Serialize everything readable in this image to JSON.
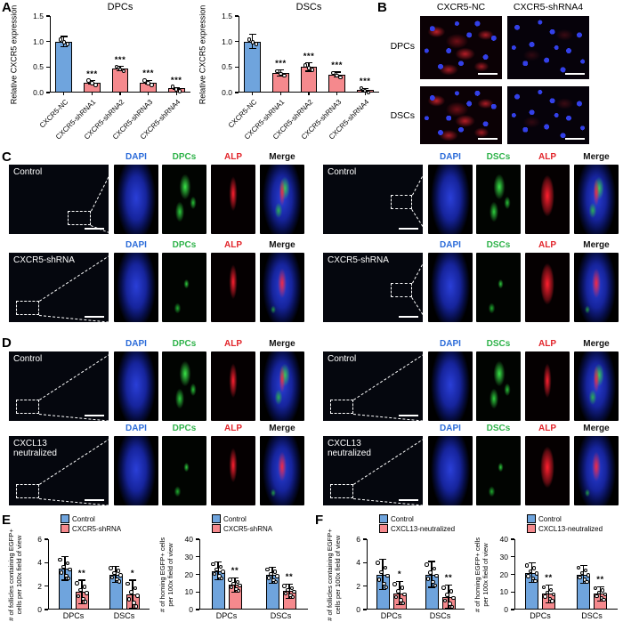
{
  "colors": {
    "control_bar": "#6FA4DD",
    "treated_bar": "#F5898D",
    "dapi_blue": "#2B6BD9",
    "egfp_green": "#2FB34A",
    "alp_red": "#E2252B"
  },
  "panels": {
    "A": {
      "label": "A"
    },
    "B": {
      "label": "B",
      "columns": [
        "CXCR5-NC",
        "CXCR5-shRNA4"
      ],
      "rows": [
        "DPCs",
        "DSCs"
      ]
    },
    "C": {
      "label": "C",
      "left": {
        "headers": [
          "DAPI",
          "DPCs",
          "ALP",
          "Merge"
        ],
        "rows": [
          {
            "label": "Control"
          },
          {
            "label": "CXCR5-shRNA"
          }
        ]
      },
      "right": {
        "headers": [
          "DAPI",
          "DSCs",
          "ALP",
          "Merge"
        ],
        "rows": [
          {
            "label": "Control"
          },
          {
            "label": "CXCR5-shRNA"
          }
        ]
      }
    },
    "D": {
      "label": "D",
      "left": {
        "headers": [
          "DAPI",
          "DPCs",
          "ALP",
          "Merge"
        ],
        "rows": [
          {
            "label": "Control"
          },
          {
            "label": "CXCL13 neutralized"
          }
        ]
      },
      "right": {
        "headers": [
          "DAPI",
          "DSCs",
          "ALP",
          "Merge"
        ],
        "rows": [
          {
            "label": "Control"
          },
          {
            "label": "CXCL13 neutralized"
          }
        ]
      }
    },
    "E": {
      "label": "E"
    },
    "F": {
      "label": "F"
    }
  },
  "chart_data": [
    {
      "id": "a_dpcs",
      "type": "bar",
      "title": "DPCs",
      "ylabel": "Relative CXCR5 expression",
      "categories": [
        "CXCR5-NC",
        "CXCR5-shRNA1",
        "CXCR5-shRNA2",
        "CXCR5-shRNA3",
        "CXCR5-shRNA4"
      ],
      "values": [
        1.0,
        0.2,
        0.47,
        0.2,
        0.08
      ],
      "errors": [
        0.1,
        0.03,
        0.04,
        0.04,
        0.02
      ],
      "sig": [
        "",
        "***",
        "***",
        "***",
        "***"
      ],
      "bar_colors": [
        "#6FA4DD",
        "#F5898D",
        "#F5898D",
        "#F5898D",
        "#F5898D"
      ],
      "ylim": [
        0,
        1.5
      ],
      "yticks": [
        "0.0",
        "0.5",
        "1.0",
        "1.5"
      ],
      "points_per_bar": 3
    },
    {
      "id": "a_dscs",
      "type": "bar",
      "title": "DSCs",
      "ylabel": "Relative CXCR5 expression",
      "categories": [
        "CXCR5-NC",
        "CXCR5-shRNA1",
        "CXCR5-shRNA2",
        "CXCR5-shRNA3",
        "CXCR5-shRNA4"
      ],
      "values": [
        1.0,
        0.38,
        0.5,
        0.35,
        0.05
      ],
      "errors": [
        0.14,
        0.06,
        0.08,
        0.05,
        0.03
      ],
      "sig": [
        "",
        "***",
        "***",
        "***",
        "***"
      ],
      "bar_colors": [
        "#6FA4DD",
        "#F5898D",
        "#F5898D",
        "#F5898D",
        "#F5898D"
      ],
      "ylim": [
        0,
        1.5
      ],
      "yticks": [
        "0.0",
        "0.5",
        "1.0",
        "1.5"
      ],
      "points_per_bar": 3
    },
    {
      "id": "e_follicles",
      "type": "grouped_bar",
      "ylabel_lines": [
        "# of follicles containing EGFP+",
        "cells per 100x field of view"
      ],
      "categories": [
        "DPCs",
        "DSCs"
      ],
      "series": [
        {
          "name": "Control",
          "color": "#6FA4DD",
          "values": [
            3.5,
            3.0
          ],
          "errors": [
            1.0,
            0.7
          ]
        },
        {
          "name": "CXCR5-shRNA",
          "color": "#F5898D",
          "values": [
            1.5,
            1.3
          ],
          "errors": [
            1.0,
            1.2
          ],
          "sig": [
            "**",
            "*"
          ]
        }
      ],
      "ylim": [
        0,
        6
      ],
      "yticks": [
        "0",
        "2",
        "4",
        "6"
      ],
      "points_per_bar": 7,
      "legend": true
    },
    {
      "id": "e_homing",
      "type": "grouped_bar",
      "ylabel_lines": [
        "# of homing EGFP+ cells",
        "per 100x field of view"
      ],
      "categories": [
        "DPCs",
        "DSCs"
      ],
      "series": [
        {
          "name": "Control",
          "color": "#6FA4DD",
          "values": [
            22,
            19.5
          ],
          "errors": [
            5,
            4.5
          ]
        },
        {
          "name": "CXCR5-shRNA",
          "color": "#F5898D",
          "values": [
            14,
            10.5
          ],
          "errors": [
            4,
            4
          ],
          "sig": [
            "**",
            "**"
          ]
        }
      ],
      "ylim": [
        0,
        40
      ],
      "yticks": [
        "0",
        "10",
        "20",
        "30",
        "40"
      ],
      "points_per_bar": 7,
      "legend": true
    },
    {
      "id": "f_follicles",
      "type": "grouped_bar",
      "ylabel_lines": [
        "# of follicles containing EGFP+",
        "cells per 100x field of view"
      ],
      "categories": [
        "DPCs",
        "DSCs"
      ],
      "series": [
        {
          "name": "Control",
          "color": "#6FA4DD",
          "values": [
            3.0,
            3.0
          ],
          "errors": [
            1.3,
            1.1
          ]
        },
        {
          "name": "CXCL13-neutralized",
          "color": "#F5898D",
          "values": [
            1.4,
            1.1
          ],
          "errors": [
            1.0,
            1.0
          ],
          "sig": [
            "*",
            "**"
          ]
        }
      ],
      "ylim": [
        0,
        6
      ],
      "yticks": [
        "0",
        "2",
        "4",
        "6"
      ],
      "points_per_bar": 7,
      "legend": true
    },
    {
      "id": "f_homing",
      "type": "grouped_bar",
      "ylabel_lines": [
        "# of homing EGFP+ cells",
        "per 100x field of view"
      ],
      "categories": [
        "DPCs",
        "DSCs"
      ],
      "series": [
        {
          "name": "Control",
          "color": "#6FA4DD",
          "values": [
            21,
            20
          ],
          "errors": [
            5.5,
            5
          ]
        },
        {
          "name": "CXCL13-neutralized",
          "color": "#F5898D",
          "values": [
            9,
            9
          ],
          "errors": [
            5,
            4
          ],
          "sig": [
            "**",
            "**"
          ]
        }
      ],
      "ylim": [
        0,
        40
      ],
      "yticks": [
        "0",
        "10",
        "20",
        "30",
        "40"
      ],
      "points_per_bar": 7,
      "legend": true
    }
  ]
}
